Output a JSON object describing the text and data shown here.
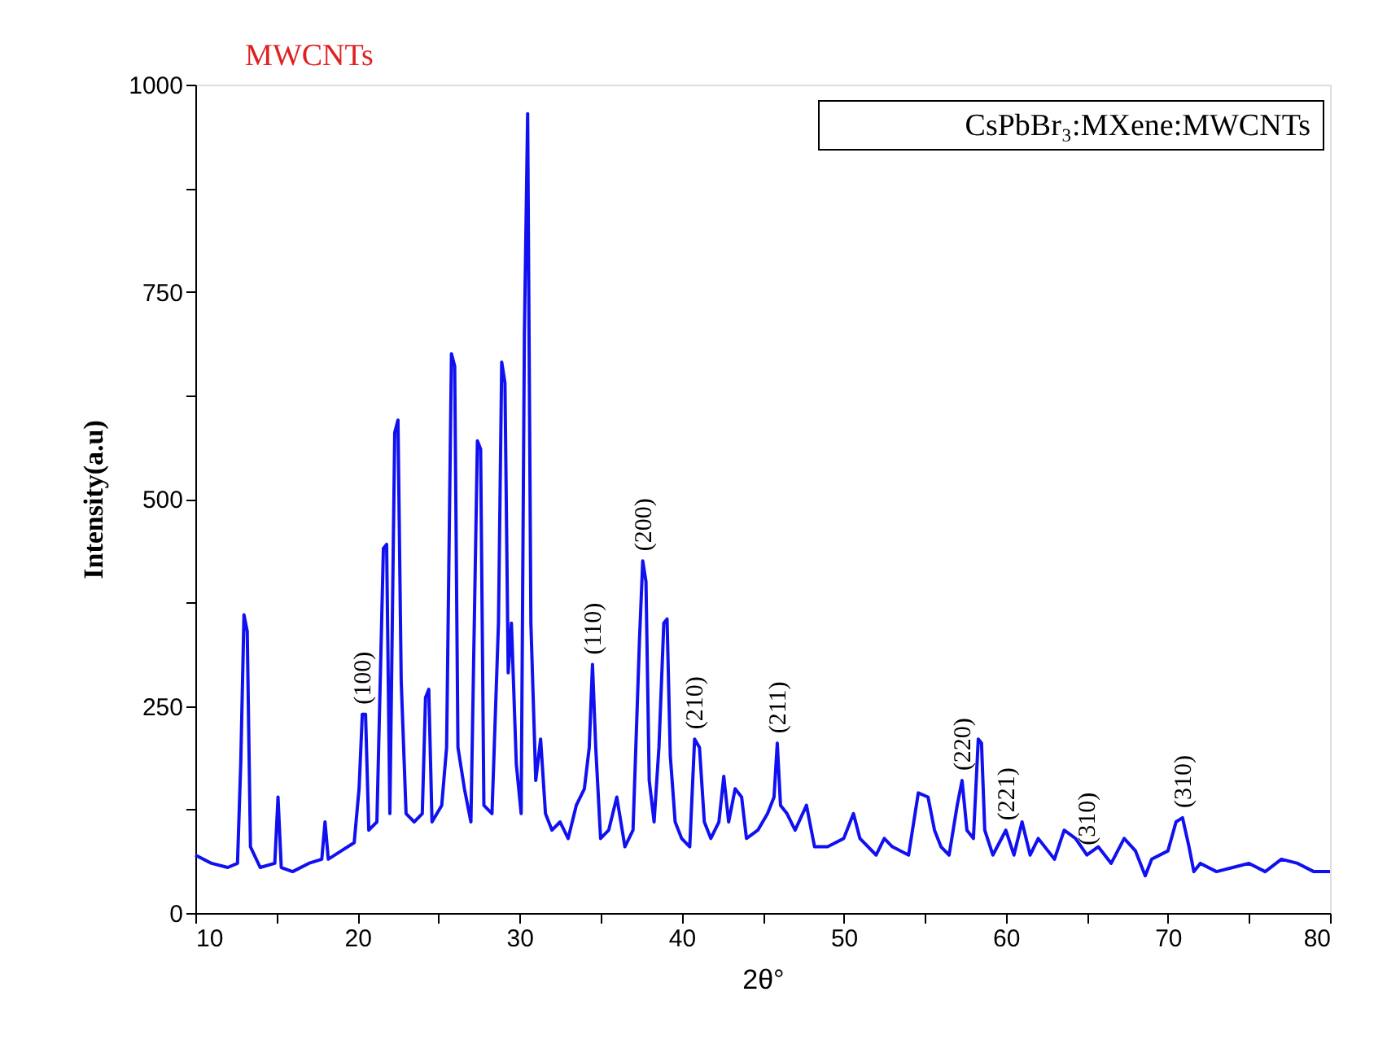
{
  "chart_data": {
    "type": "line",
    "xlabel": "2θ°",
    "ylabel": "Intensity(a.u)",
    "xlim": [
      10,
      80
    ],
    "ylim": [
      0,
      1000
    ],
    "xticks": [
      10,
      {
        "value": 15,
        "label": null
      },
      20,
      {
        "value": 25,
        "label": null
      },
      30,
      {
        "value": 35,
        "label": null
      },
      40,
      {
        "value": 45,
        "label": null
      },
      50,
      {
        "value": 55,
        "label": null
      },
      60,
      {
        "value": 65,
        "label": null
      },
      70,
      {
        "value": 75,
        "label": null
      },
      80
    ],
    "yticks": [
      0,
      {
        "value": 125,
        "label": null
      },
      250,
      {
        "value": 375,
        "label": null
      },
      500,
      {
        "value": 625,
        "label": null
      },
      750,
      {
        "value": 875,
        "label": null
      },
      1000
    ],
    "grid": false,
    "legend": "top right",
    "marker": "none",
    "line_style": "solid",
    "series": [
      {
        "name": "CsPbBr₃:MXene:MWCNTs",
        "color": "#1010f0",
        "x": [
          10,
          11,
          12,
          12.6,
          12.8,
          13.0,
          13.2,
          13.4,
          14,
          14.9,
          15.1,
          15.3,
          16,
          17,
          17.8,
          18,
          18.2,
          19,
          19.8,
          20.1,
          20.3,
          20.5,
          20.7,
          21.2,
          21.6,
          21.8,
          22.0,
          22.3,
          22.5,
          22.7,
          23.0,
          23.5,
          24.0,
          24.2,
          24.4,
          24.6,
          25.2,
          25.5,
          25.8,
          26.0,
          26.2,
          26.6,
          27.0,
          27.4,
          27.6,
          27.8,
          28.3,
          28.7,
          28.9,
          29.1,
          29.3,
          29.5,
          29.8,
          30.1,
          30.3,
          30.5,
          30.7,
          31.0,
          31.3,
          31.6,
          32,
          32.5,
          33,
          33.5,
          34.0,
          34.3,
          34.5,
          34.7,
          35,
          35.5,
          36,
          36.5,
          37,
          37.4,
          37.6,
          37.8,
          38.0,
          38.3,
          38.6,
          38.9,
          39.1,
          39.3,
          39.6,
          40,
          40.5,
          40.8,
          41.1,
          41.4,
          41.8,
          42.3,
          42.6,
          42.9,
          43.3,
          43.7,
          44,
          44.7,
          45.3,
          45.7,
          45.9,
          46.1,
          46.5,
          47,
          47.7,
          48.2,
          49,
          50,
          50.6,
          51,
          52,
          52.5,
          53,
          54,
          54.6,
          55.2,
          55.6,
          56.0,
          56.5,
          57,
          57.3,
          57.6,
          58.0,
          58.3,
          58.5,
          58.7,
          59.2,
          60,
          60.5,
          61,
          61.5,
          62,
          63,
          63.6,
          64.3,
          65,
          65.7,
          66.5,
          67.3,
          68,
          68.6,
          69,
          70,
          70.5,
          70.9,
          71.3,
          71.6,
          72,
          73,
          74,
          75,
          76,
          77,
          78,
          79,
          80
        ],
        "values": [
          70,
          60,
          55,
          60,
          180,
          360,
          340,
          80,
          55,
          60,
          140,
          55,
          50,
          60,
          65,
          110,
          65,
          75,
          85,
          150,
          240,
          240,
          100,
          110,
          440,
          445,
          120,
          580,
          595,
          280,
          120,
          110,
          120,
          260,
          270,
          110,
          130,
          200,
          675,
          660,
          200,
          150,
          110,
          570,
          560,
          130,
          120,
          350,
          665,
          640,
          290,
          350,
          180,
          120,
          700,
          965,
          350,
          160,
          210,
          120,
          100,
          110,
          90,
          130,
          150,
          200,
          300,
          200,
          90,
          100,
          140,
          80,
          100,
          330,
          425,
          400,
          160,
          110,
          200,
          350,
          355,
          190,
          110,
          90,
          80,
          210,
          200,
          110,
          90,
          110,
          165,
          110,
          150,
          140,
          90,
          100,
          120,
          140,
          205,
          130,
          120,
          100,
          130,
          80,
          80,
          90,
          120,
          90,
          70,
          90,
          80,
          70,
          145,
          140,
          100,
          80,
          70,
          130,
          160,
          100,
          90,
          210,
          205,
          100,
          70,
          100,
          70,
          110,
          70,
          90,
          65,
          100,
          90,
          70,
          80,
          60,
          90,
          75,
          45,
          65,
          75,
          110,
          115,
          80,
          50,
          60,
          50,
          55,
          60,
          50,
          65,
          60,
          50,
          50
        ]
      }
    ],
    "annotations": [
      "MWCNTs",
      {
        "text": "(100)",
        "x": 20.3,
        "y": 240
      },
      {
        "text": "(110)",
        "x": 34.5,
        "y": 300
      },
      {
        "text": "(200)",
        "x": 37.6,
        "y": 425
      },
      {
        "text": "(210)",
        "x": 40.8,
        "y": 210
      },
      {
        "text": "(211)",
        "x": 45.9,
        "y": 205
      },
      {
        "text": "(220)",
        "x": 57.3,
        "y": 160
      },
      {
        "text": "(221)",
        "x": 60,
        "y": 100
      },
      {
        "text": "(310)",
        "x": 65,
        "y": 70
      },
      {
        "text": "(310)",
        "x": 70.9,
        "y": 115
      }
    ]
  }
}
